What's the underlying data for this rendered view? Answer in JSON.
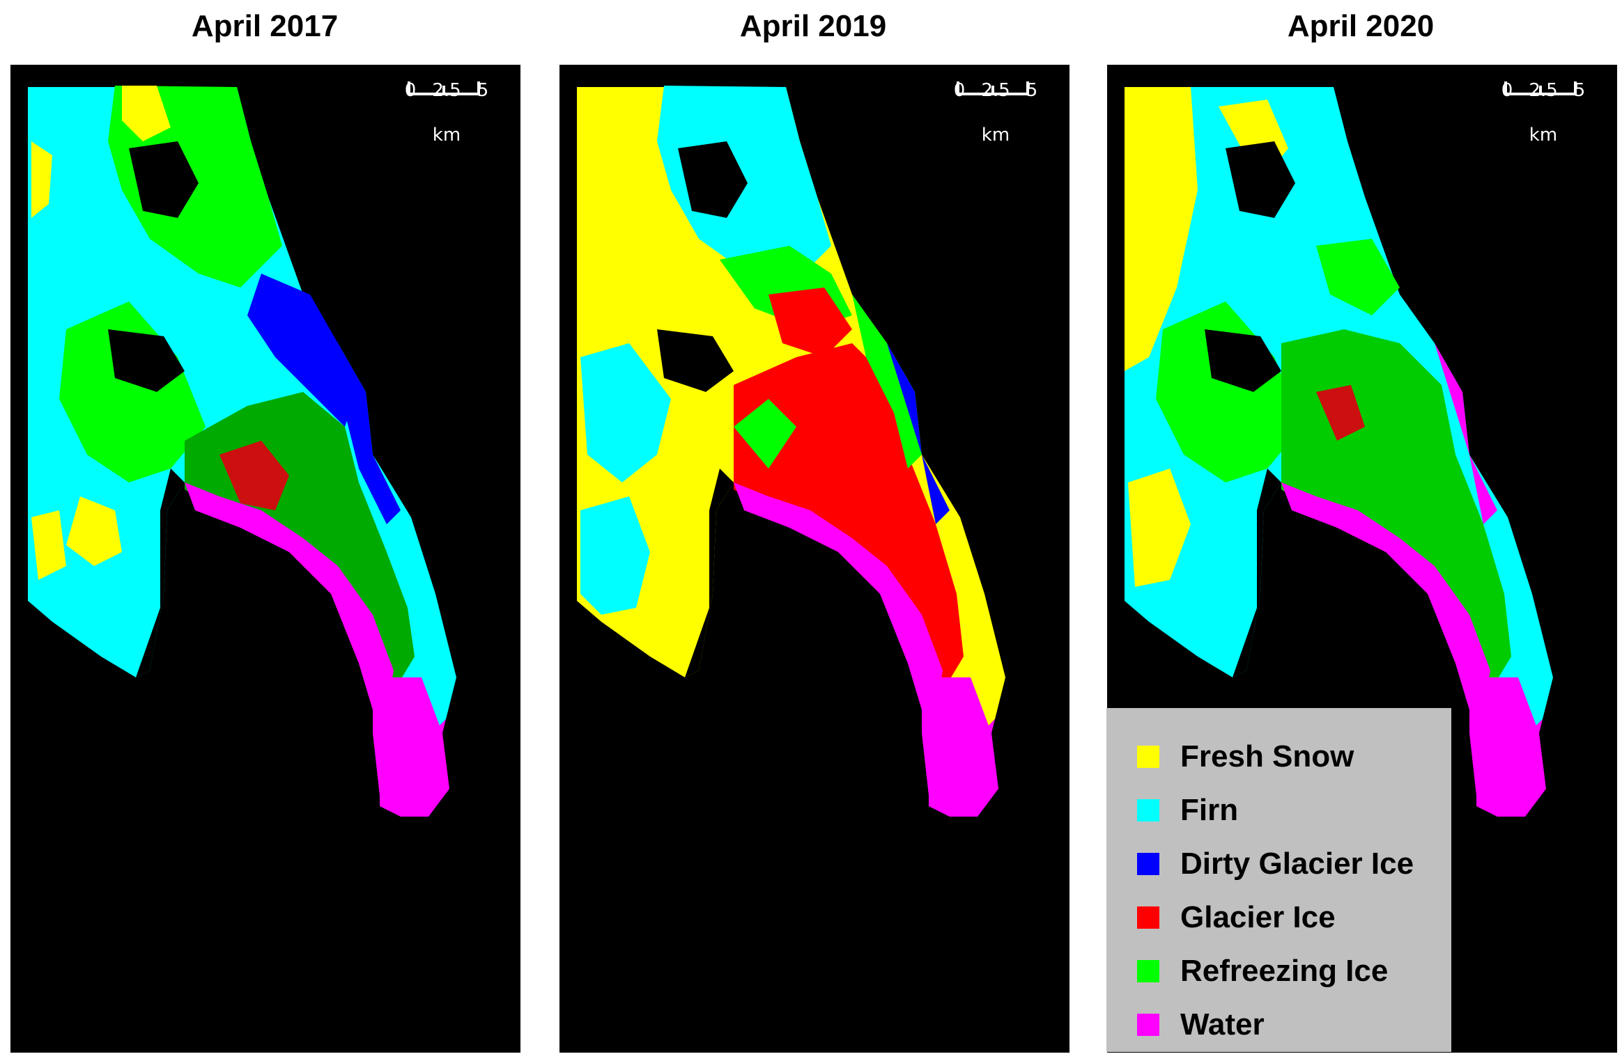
{
  "panels": [
    {
      "title": "April 2017"
    },
    {
      "title": "April 2019"
    },
    {
      "title": "April 2020"
    }
  ],
  "scalebar": {
    "ticks": [
      "0",
      "2.5",
      "5"
    ],
    "unit": "km"
  },
  "legend": {
    "items": [
      {
        "label": "Fresh Snow",
        "color": "#ffff00"
      },
      {
        "label": "Firn",
        "color": "#00ffff"
      },
      {
        "label": "Dirty Glacier Ice",
        "color": "#0000ff"
      },
      {
        "label": "Glacier Ice",
        "color": "#ff0000"
      },
      {
        "label": "Refreezing Ice",
        "color": "#00ff00"
      },
      {
        "label": "Water",
        "color": "#ff00ff"
      }
    ]
  }
}
